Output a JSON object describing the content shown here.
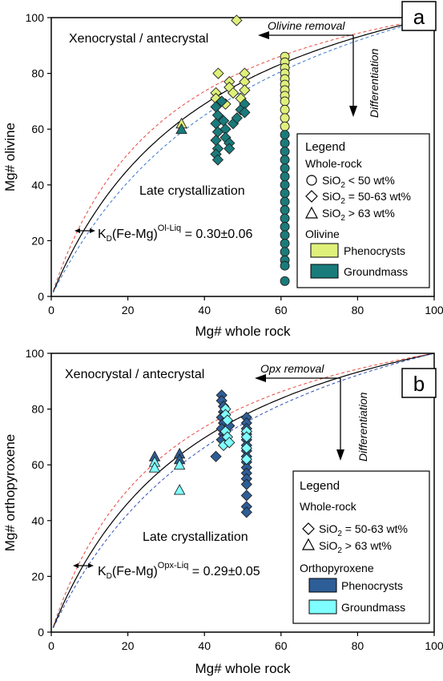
{
  "chart_data": [
    {
      "type": "scatter",
      "panel_label": "a",
      "xlabel": "Mg# whole rock",
      "ylabel": "Mg# olivine",
      "xlim": [
        0,
        100
      ],
      "ylim": [
        0,
        100
      ],
      "xticks": [
        "0",
        "20",
        "40",
        "60",
        "80",
        "100"
      ],
      "yticks": [
        "0",
        "20",
        "40",
        "60",
        "80",
        "100"
      ],
      "annotations": {
        "xeno": "Xenocrystal / antecrystal",
        "late": "Late crystallization",
        "removal": "Olivine removal",
        "diff": "Differentiation",
        "kd_main": "K",
        "kd_sub": "D",
        "kd_mid": "(Fe-Mg)",
        "kd_sup": "Ol-Liq",
        "kd_val": " = 0.30±0.06"
      },
      "curves": [
        {
          "kd": 0.3,
          "color": "#000000",
          "style": "solid"
        },
        {
          "kd": 0.24,
          "color": "#e8483c",
          "style": "dashed"
        },
        {
          "kd": 0.36,
          "color": "#3a78c9",
          "style": "dashed"
        }
      ],
      "legend": {
        "title": "Legend",
        "subtitle1": "Whole-rock",
        "items": [
          {
            "shape": "circle",
            "prefix": "SiO",
            "sub": "2",
            "suffix": " < 50 wt%"
          },
          {
            "shape": "diamond",
            "prefix": "SiO",
            "sub": "2",
            "suffix": " = 50-63 wt%"
          },
          {
            "shape": "triangle",
            "prefix": "SiO",
            "sub": "2",
            "suffix": " > 63 wt%"
          }
        ],
        "subtitle2": "Olivine",
        "swatches": [
          {
            "label": "Phenocrysts",
            "color": "#dff07a"
          },
          {
            "label": "Groundmass",
            "color": "#1a7b7b"
          }
        ]
      },
      "series": [
        {
          "name": "Phenocrysts",
          "color": "#dff07a",
          "points": [
            {
              "x": 48.4,
              "y": 99,
              "shape": "diamond"
            },
            {
              "x": 43.6,
              "y": 80,
              "shape": "diamond"
            },
            {
              "x": 46.5,
              "y": 77,
              "shape": "diamond"
            },
            {
              "x": 46.5,
              "y": 75,
              "shape": "diamond"
            },
            {
              "x": 47.5,
              "y": 73,
              "shape": "diamond"
            },
            {
              "x": 50.5,
              "y": 80,
              "shape": "diamond"
            },
            {
              "x": 50.5,
              "y": 77,
              "shape": "diamond"
            },
            {
              "x": 50.5,
              "y": 74,
              "shape": "diamond"
            },
            {
              "x": 49.5,
              "y": 71,
              "shape": "diamond"
            },
            {
              "x": 43.0,
              "y": 73,
              "shape": "diamond"
            },
            {
              "x": 43.0,
              "y": 71,
              "shape": "diamond"
            },
            {
              "x": 45.5,
              "y": 69,
              "shape": "diamond"
            },
            {
              "x": 34.0,
              "y": 62,
              "shape": "triangle"
            },
            {
              "x": 61.0,
              "y": 86,
              "shape": "circle"
            },
            {
              "x": 61.0,
              "y": 84,
              "shape": "circle"
            },
            {
              "x": 61.0,
              "y": 82,
              "shape": "circle"
            },
            {
              "x": 61.0,
              "y": 80,
              "shape": "circle"
            },
            {
              "x": 61.0,
              "y": 78,
              "shape": "circle"
            },
            {
              "x": 61.0,
              "y": 76,
              "shape": "circle"
            },
            {
              "x": 61.0,
              "y": 74,
              "shape": "circle"
            },
            {
              "x": 61.0,
              "y": 72,
              "shape": "circle"
            },
            {
              "x": 61.0,
              "y": 70,
              "shape": "circle"
            },
            {
              "x": 61.0,
              "y": 67,
              "shape": "circle"
            },
            {
              "x": 61.0,
              "y": 64,
              "shape": "circle"
            },
            {
              "x": 61.0,
              "y": 61,
              "shape": "circle"
            }
          ]
        },
        {
          "name": "Groundmass",
          "color": "#1a7b7b",
          "points": [
            {
              "x": 43.0,
              "y": 68,
              "shape": "diamond"
            },
            {
              "x": 43.5,
              "y": 65,
              "shape": "diamond"
            },
            {
              "x": 43.0,
              "y": 62,
              "shape": "diamond"
            },
            {
              "x": 43.5,
              "y": 59,
              "shape": "diamond"
            },
            {
              "x": 43.0,
              "y": 56,
              "shape": "diamond"
            },
            {
              "x": 43.5,
              "y": 53,
              "shape": "diamond"
            },
            {
              "x": 43.0,
              "y": 51,
              "shape": "diamond"
            },
            {
              "x": 43.5,
              "y": 49,
              "shape": "diamond"
            },
            {
              "x": 45.0,
              "y": 63,
              "shape": "diamond"
            },
            {
              "x": 45.5,
              "y": 60,
              "shape": "diamond"
            },
            {
              "x": 45.5,
              "y": 57,
              "shape": "diamond"
            },
            {
              "x": 46.5,
              "y": 55,
              "shape": "diamond"
            },
            {
              "x": 46.5,
              "y": 53,
              "shape": "diamond"
            },
            {
              "x": 47.5,
              "y": 62,
              "shape": "diamond"
            },
            {
              "x": 48.5,
              "y": 64,
              "shape": "diamond"
            },
            {
              "x": 49.5,
              "y": 67,
              "shape": "diamond"
            },
            {
              "x": 50.5,
              "y": 69,
              "shape": "diamond"
            },
            {
              "x": 50.5,
              "y": 66,
              "shape": "diamond"
            },
            {
              "x": 44.5,
              "y": 70,
              "shape": "diamond"
            },
            {
              "x": 34.0,
              "y": 60,
              "shape": "triangle"
            },
            {
              "x": 61.0,
              "y": 58,
              "shape": "circle"
            },
            {
              "x": 61.0,
              "y": 55,
              "shape": "circle"
            },
            {
              "x": 61.0,
              "y": 52,
              "shape": "circle"
            },
            {
              "x": 61.0,
              "y": 49,
              "shape": "circle"
            },
            {
              "x": 61.0,
              "y": 46,
              "shape": "circle"
            },
            {
              "x": 61.0,
              "y": 43,
              "shape": "circle"
            },
            {
              "x": 61.0,
              "y": 40,
              "shape": "circle"
            },
            {
              "x": 61.0,
              "y": 37,
              "shape": "circle"
            },
            {
              "x": 61.0,
              "y": 34,
              "shape": "circle"
            },
            {
              "x": 61.0,
              "y": 31,
              "shape": "circle"
            },
            {
              "x": 61.0,
              "y": 28,
              "shape": "circle"
            },
            {
              "x": 61.0,
              "y": 25,
              "shape": "circle"
            },
            {
              "x": 61.0,
              "y": 22,
              "shape": "circle"
            },
            {
              "x": 61.0,
              "y": 19,
              "shape": "circle"
            },
            {
              "x": 61.0,
              "y": 16,
              "shape": "circle"
            },
            {
              "x": 61.0,
              "y": 13,
              "shape": "circle"
            },
            {
              "x": 61.0,
              "y": 11,
              "shape": "circle"
            },
            {
              "x": 61.0,
              "y": 5.5,
              "shape": "circle"
            }
          ]
        }
      ]
    },
    {
      "type": "scatter",
      "panel_label": "b",
      "xlabel": "Mg# whole rock",
      "ylabel": "Mg# orthopyroxene",
      "xlim": [
        0,
        100
      ],
      "ylim": [
        0,
        100
      ],
      "xticks": [
        "0",
        "20",
        "40",
        "60",
        "80",
        "100"
      ],
      "yticks": [
        "0",
        "20",
        "40",
        "60",
        "80",
        "100"
      ],
      "annotations": {
        "xeno": "Xenocrystal / antecrystal",
        "late": "Late crystallization",
        "removal": "Opx removal",
        "diff": "Differentiation",
        "kd_main": "K",
        "kd_sub": "D",
        "kd_mid": "(Fe-Mg)",
        "kd_sup": "Opx-Liq",
        "kd_val": " = 0.29±0.05"
      },
      "curves": [
        {
          "kd": 0.29,
          "color": "#000000",
          "style": "solid"
        },
        {
          "kd": 0.24,
          "color": "#e8483c",
          "style": "dashed"
        },
        {
          "kd": 0.34,
          "color": "#2d4fb3",
          "style": "dashed"
        }
      ],
      "legend": {
        "title": "Legend",
        "subtitle1": "Whole-rock",
        "items": [
          {
            "shape": "diamond",
            "prefix": "SiO",
            "sub": "2",
            "suffix": " = 50-63 wt%"
          },
          {
            "shape": "triangle",
            "prefix": "SiO",
            "sub": "2",
            "suffix": " > 63 wt%"
          }
        ],
        "subtitle2": "Orthopyroxene",
        "swatches": [
          {
            "label": "Phenocrysts",
            "color": "#2e5e97"
          },
          {
            "label": "Groundmass",
            "color": "#7fffff"
          }
        ]
      },
      "series": [
        {
          "name": "Phenocrysts",
          "color": "#2e5e97",
          "points": [
            {
              "x": 27.0,
              "y": 63,
              "shape": "triangle"
            },
            {
              "x": 33.5,
              "y": 64,
              "shape": "triangle"
            },
            {
              "x": 33.5,
              "y": 62,
              "shape": "triangle"
            },
            {
              "x": 44.5,
              "y": 85,
              "shape": "diamond"
            },
            {
              "x": 44.5,
              "y": 83,
              "shape": "diamond"
            },
            {
              "x": 45.0,
              "y": 81,
              "shape": "diamond"
            },
            {
              "x": 45.0,
              "y": 79,
              "shape": "diamond"
            },
            {
              "x": 44.5,
              "y": 77,
              "shape": "diamond"
            },
            {
              "x": 45.0,
              "y": 75,
              "shape": "diamond"
            },
            {
              "x": 44.5,
              "y": 73,
              "shape": "diamond"
            },
            {
              "x": 45.0,
              "y": 71,
              "shape": "diamond"
            },
            {
              "x": 44.5,
              "y": 69,
              "shape": "diamond"
            },
            {
              "x": 43.0,
              "y": 63,
              "shape": "diamond"
            },
            {
              "x": 46.5,
              "y": 74,
              "shape": "diamond"
            },
            {
              "x": 51.0,
              "y": 77,
              "shape": "diamond"
            },
            {
              "x": 51.0,
              "y": 75,
              "shape": "diamond"
            },
            {
              "x": 51.0,
              "y": 73,
              "shape": "diamond"
            },
            {
              "x": 51.0,
              "y": 71,
              "shape": "diamond"
            },
            {
              "x": 51.0,
              "y": 69,
              "shape": "diamond"
            },
            {
              "x": 51.0,
              "y": 67,
              "shape": "diamond"
            },
            {
              "x": 51.0,
              "y": 65,
              "shape": "diamond"
            },
            {
              "x": 51.0,
              "y": 63,
              "shape": "diamond"
            },
            {
              "x": 51.0,
              "y": 61,
              "shape": "diamond"
            },
            {
              "x": 51.0,
              "y": 59,
              "shape": "diamond"
            },
            {
              "x": 51.0,
              "y": 57,
              "shape": "diamond"
            },
            {
              "x": 51.0,
              "y": 55,
              "shape": "diamond"
            },
            {
              "x": 51.0,
              "y": 53,
              "shape": "diamond"
            },
            {
              "x": 51.0,
              "y": 49,
              "shape": "diamond"
            },
            {
              "x": 51.0,
              "y": 45,
              "shape": "diamond"
            },
            {
              "x": 51.0,
              "y": 43,
              "shape": "diamond"
            }
          ]
        },
        {
          "name": "Groundmass",
          "color": "#7fffff",
          "points": [
            {
              "x": 27.0,
              "y": 61,
              "shape": "triangle"
            },
            {
              "x": 27.0,
              "y": 59,
              "shape": "triangle"
            },
            {
              "x": 33.5,
              "y": 60,
              "shape": "triangle"
            },
            {
              "x": 33.5,
              "y": 51,
              "shape": "triangle"
            },
            {
              "x": 45.5,
              "y": 80,
              "shape": "diamond"
            },
            {
              "x": 45.5,
              "y": 78,
              "shape": "diamond"
            },
            {
              "x": 46.0,
              "y": 76,
              "shape": "diamond"
            },
            {
              "x": 45.5,
              "y": 72,
              "shape": "diamond"
            },
            {
              "x": 46.0,
              "y": 70,
              "shape": "diamond"
            },
            {
              "x": 45.0,
              "y": 67,
              "shape": "diamond"
            },
            {
              "x": 46.5,
              "y": 68,
              "shape": "diamond"
            },
            {
              "x": 51.0,
              "y": 72,
              "shape": "diamond"
            },
            {
              "x": 51.0,
              "y": 70,
              "shape": "diamond"
            },
            {
              "x": 51.0,
              "y": 66,
              "shape": "diamond"
            },
            {
              "x": 51.0,
              "y": 62,
              "shape": "diamond"
            }
          ]
        }
      ]
    }
  ]
}
